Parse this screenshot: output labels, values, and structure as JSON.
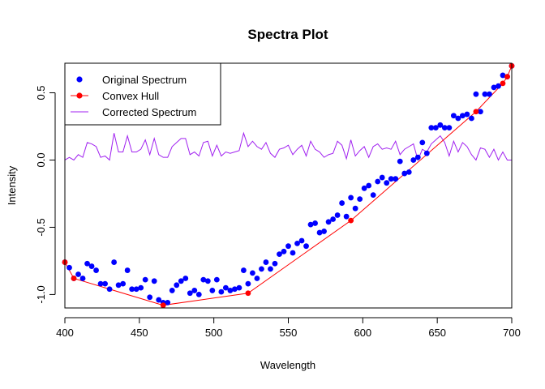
{
  "chart_data": {
    "type": "scatter",
    "title": "Spectra Plot",
    "xlabel": "Wavelength",
    "ylabel": "Intensity",
    "xlim": [
      400,
      700
    ],
    "ylim": [
      -1.1,
      0.72
    ],
    "x_ticks": [
      400,
      450,
      500,
      550,
      600,
      650,
      700
    ],
    "y_ticks": [
      -1.0,
      -0.5,
      0.0,
      0.5
    ],
    "x_tick_labels": [
      "400",
      "450",
      "500",
      "550",
      "600",
      "650",
      "700"
    ],
    "y_tick_labels": [
      "-1.0",
      "-0.5",
      "0.0",
      "0.5"
    ],
    "grid": false,
    "legend_position": "top-left",
    "legend": [
      "Original Spectrum",
      "Convex Hull",
      "Corrected Spectrum"
    ],
    "colors": {
      "original": "#0000ff",
      "hull": "#ff0000",
      "corrected": "#a020f0"
    },
    "series": [
      {
        "name": "Original Spectrum",
        "style": "points",
        "x": [
          400,
          403,
          406,
          409,
          412,
          415,
          418,
          421,
          424,
          427,
          430,
          433,
          436,
          439,
          442,
          445,
          448,
          451,
          454,
          457,
          460,
          463,
          466,
          469,
          472,
          475,
          478,
          481,
          484,
          487,
          490,
          493,
          496,
          499,
          502,
          505,
          508,
          511,
          514,
          517,
          520,
          523,
          526,
          529,
          532,
          535,
          538,
          541,
          544,
          547,
          550,
          553,
          556,
          559,
          562,
          565,
          568,
          571,
          574,
          577,
          580,
          583,
          586,
          589,
          592,
          595,
          598,
          601,
          604,
          607,
          610,
          613,
          616,
          619,
          622,
          625,
          628,
          631,
          634,
          637,
          640,
          643,
          646,
          649,
          652,
          655,
          658,
          661,
          664,
          667,
          670,
          673,
          676,
          679,
          682,
          685,
          688,
          691,
          694,
          697,
          700
        ],
        "y": [
          -0.76,
          -0.8,
          -0.88,
          -0.85,
          -0.88,
          -0.77,
          -0.79,
          -0.82,
          -0.92,
          -0.92,
          -0.96,
          -0.76,
          -0.93,
          -0.92,
          -0.82,
          -0.96,
          -0.96,
          -0.95,
          -0.89,
          -1.02,
          -0.9,
          -1.04,
          -1.06,
          -1.06,
          -0.97,
          -0.93,
          -0.9,
          -0.88,
          -0.99,
          -0.97,
          -1.0,
          -0.89,
          -0.9,
          -0.97,
          -0.89,
          -0.98,
          -0.95,
          -0.97,
          -0.96,
          -0.95,
          -0.82,
          -0.92,
          -0.84,
          -0.88,
          -0.81,
          -0.76,
          -0.81,
          -0.77,
          -0.7,
          -0.68,
          -0.64,
          -0.69,
          -0.62,
          -0.6,
          -0.64,
          -0.48,
          -0.47,
          -0.54,
          -0.53,
          -0.46,
          -0.44,
          -0.41,
          -0.32,
          -0.42,
          -0.28,
          -0.36,
          -0.29,
          -0.21,
          -0.19,
          -0.26,
          -0.16,
          -0.13,
          -0.17,
          -0.14,
          -0.14,
          -0.01,
          -0.1,
          -0.09,
          0.0,
          0.02,
          0.13,
          0.05,
          0.24,
          0.24,
          0.26,
          0.24,
          0.24,
          0.33,
          0.31,
          0.33,
          0.34,
          0.31,
          0.49,
          0.36,
          0.49,
          0.49,
          0.54,
          0.55,
          0.63,
          0.62,
          0.7
        ]
      },
      {
        "name": "Convex Hull",
        "style": "line+points",
        "x": [
          400,
          406,
          466,
          523,
          592,
          676,
          694,
          697,
          700
        ],
        "y": [
          -0.76,
          -0.88,
          -1.08,
          -0.99,
          -0.45,
          0.36,
          0.57,
          0.62,
          0.7
        ]
      },
      {
        "name": "Corrected Spectrum",
        "style": "line",
        "x": [
          400,
          403,
          406,
          409,
          412,
          415,
          418,
          421,
          424,
          427,
          430,
          433,
          436,
          439,
          442,
          445,
          448,
          451,
          454,
          457,
          460,
          463,
          466,
          469,
          472,
          475,
          478,
          481,
          484,
          487,
          490,
          493,
          496,
          499,
          502,
          505,
          508,
          511,
          514,
          517,
          520,
          523,
          526,
          529,
          532,
          535,
          538,
          541,
          544,
          547,
          550,
          553,
          556,
          559,
          562,
          565,
          568,
          571,
          574,
          577,
          580,
          583,
          586,
          589,
          592,
          595,
          598,
          601,
          604,
          607,
          610,
          613,
          616,
          619,
          622,
          625,
          628,
          631,
          634,
          637,
          640,
          643,
          646,
          649,
          652,
          655,
          658,
          661,
          664,
          667,
          670,
          673,
          676,
          679,
          682,
          685,
          688,
          691,
          694,
          697,
          700
        ],
        "y": [
          0.0,
          0.02,
          0.0,
          0.04,
          0.02,
          0.13,
          0.12,
          0.1,
          0.02,
          0.03,
          0.0,
          0.2,
          0.06,
          0.06,
          0.18,
          0.06,
          0.06,
          0.08,
          0.15,
          0.04,
          0.16,
          0.04,
          0.02,
          0.02,
          0.1,
          0.13,
          0.16,
          0.16,
          0.04,
          0.06,
          0.03,
          0.13,
          0.14,
          0.03,
          0.11,
          0.03,
          0.06,
          0.05,
          0.06,
          0.07,
          0.2,
          0.1,
          0.14,
          0.1,
          0.08,
          0.13,
          0.05,
          0.02,
          0.08,
          0.09,
          0.11,
          0.04,
          0.08,
          0.11,
          0.03,
          0.14,
          0.08,
          0.06,
          0.02,
          0.04,
          0.05,
          0.14,
          0.11,
          0.01,
          0.15,
          0.03,
          0.07,
          0.1,
          0.02,
          0.1,
          0.12,
          0.08,
          0.09,
          0.08,
          0.14,
          0.04,
          0.08,
          0.1,
          0.12,
          0.0,
          0.08,
          0.06,
          0.12,
          0.15,
          0.18,
          0.13,
          0.03,
          0.14,
          0.06,
          0.13,
          0.1,
          0.04,
          0.0,
          0.09,
          0.08,
          0.02,
          0.08,
          0.0,
          0.06,
          0.0,
          0.0
        ]
      }
    ]
  }
}
